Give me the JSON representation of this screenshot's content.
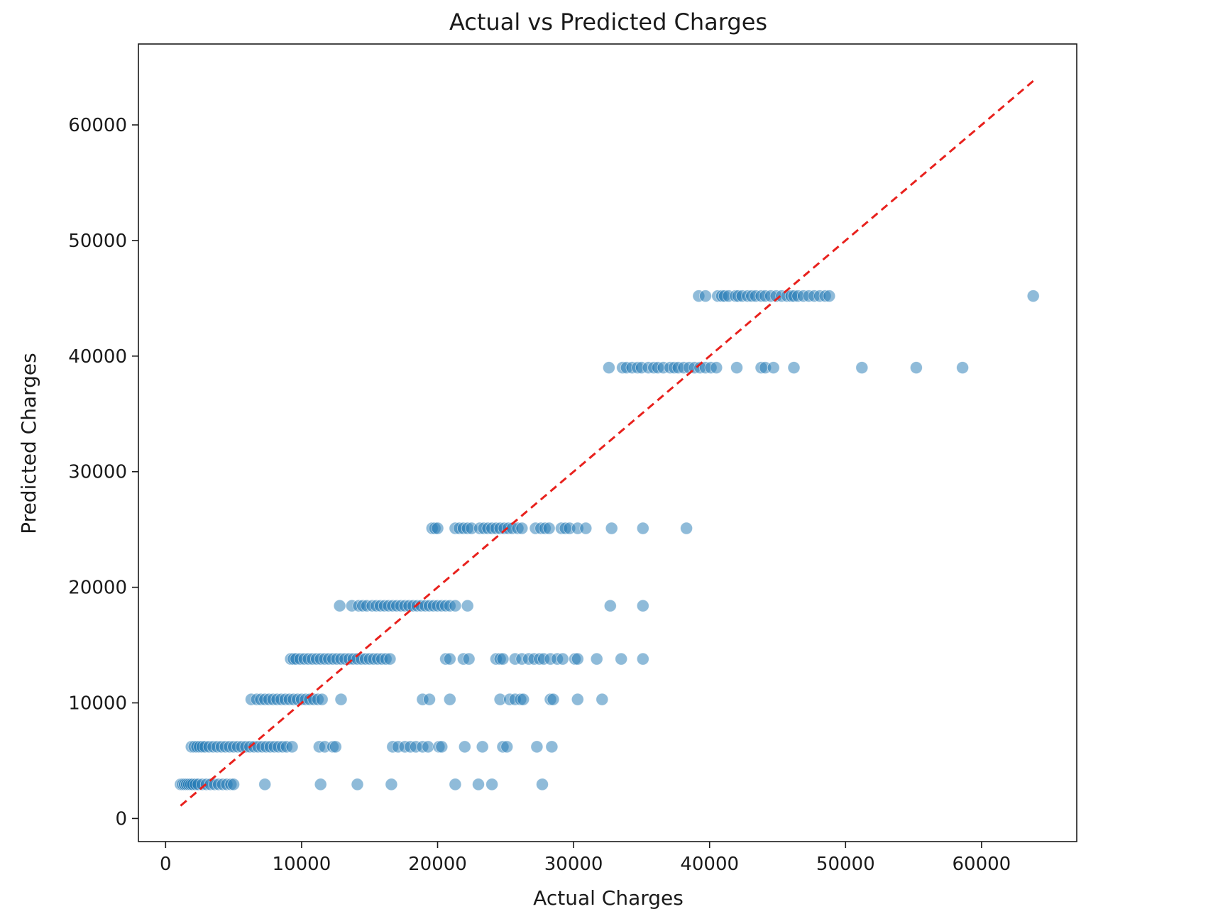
{
  "chart_data": {
    "type": "scatter",
    "title": "Actual vs Predicted Charges",
    "xlabel": "Actual Charges",
    "ylabel": "Predicted Charges",
    "xlim": [
      -2000,
      67000
    ],
    "ylim": [
      -2000,
      67000
    ],
    "xticks": [
      0,
      10000,
      20000,
      30000,
      40000,
      50000,
      60000
    ],
    "yticks": [
      0,
      10000,
      20000,
      30000,
      40000,
      50000,
      60000
    ],
    "xtick_labels": [
      "0",
      "10000",
      "20000",
      "30000",
      "40000",
      "50000",
      "60000"
    ],
    "ytick_labels": [
      "0",
      "10000",
      "20000",
      "30000",
      "40000",
      "50000",
      "60000"
    ],
    "grid": false,
    "colors": {
      "points": "#1f77b4",
      "reference_line": "#e8211d"
    },
    "reference_line": {
      "style": "dashed",
      "x": [
        1100,
        63800
      ],
      "y": [
        1100,
        63800
      ]
    },
    "series": [
      {
        "levels": [
          {
            "y": 2950,
            "x": [
              1100,
              1250,
              1400,
              1550,
              1700,
              1850,
              2000,
              2200,
              2400,
              2700,
              3000,
              3300,
              3600,
              3900,
              4200,
              4500,
              4800,
              5000,
              7300,
              11400,
              14100,
              16600,
              21300,
              23000,
              24000,
              27700
            ]
          },
          {
            "y": 6200,
            "x": [
              1900,
              2100,
              2300,
              2500,
              2700,
              2900,
              3200,
              3500,
              3800,
              4100,
              4400,
              4700,
              5000,
              5300,
              5600,
              5900,
              6200,
              6500,
              6800,
              7100,
              7400,
              7700,
              8000,
              8300,
              8600,
              8900,
              9300,
              11300,
              11700,
              12300,
              12500,
              16700,
              17100,
              17600,
              18000,
              18400,
              18900,
              19300,
              20100,
              20300,
              22000,
              23300,
              24800,
              25100,
              27300,
              28400
            ]
          },
          {
            "y": 10300,
            "x": [
              6300,
              6700,
              7000,
              7300,
              7600,
              7900,
              8200,
              8500,
              8800,
              9100,
              9400,
              9700,
              10000,
              10300,
              10600,
              10900,
              11200,
              11500,
              12900,
              18900,
              19400,
              20900,
              24600,
              25300,
              25700,
              26100,
              26300,
              28300,
              28500,
              30300,
              32100
            ]
          },
          {
            "y": 13800,
            "x": [
              9200,
              9400,
              9600,
              9900,
              10200,
              10500,
              10800,
              11100,
              11400,
              11700,
              12000,
              12300,
              12600,
              12900,
              13200,
              13500,
              13800,
              14100,
              14400,
              14700,
              15000,
              15300,
              15600,
              15900,
              16200,
              16500,
              20600,
              20900,
              21900,
              22300,
              24300,
              24600,
              24800,
              25700,
              26200,
              26700,
              27100,
              27500,
              27800,
              28300,
              28800,
              29200,
              30100,
              30300,
              31700,
              33500,
              35100
            ]
          },
          {
            "y": 18400,
            "x": [
              12800,
              13700,
              14200,
              14500,
              14800,
              15200,
              15500,
              15800,
              16100,
              16400,
              16700,
              17000,
              17300,
              17600,
              17900,
              18200,
              18500,
              18800,
              19100,
              19400,
              19700,
              20000,
              20300,
              20600,
              20900,
              21300,
              22200,
              32700,
              35100
            ]
          },
          {
            "y": 25100,
            "x": [
              19600,
              19800,
              20000,
              21300,
              21600,
              21900,
              22200,
              22500,
              23100,
              23400,
              23700,
              24000,
              24300,
              24600,
              24900,
              25200,
              25500,
              25900,
              26200,
              27200,
              27600,
              27900,
              28200,
              29100,
              29400,
              29700,
              30300,
              30900,
              32800,
              35100,
              38300
            ]
          },
          {
            "y": 39000,
            "x": [
              32600,
              33600,
              33900,
              34300,
              34700,
              35000,
              35500,
              35900,
              36200,
              36600,
              37100,
              37400,
              37700,
              38100,
              38500,
              38900,
              39300,
              39700,
              40100,
              40500,
              42000,
              43800,
              44100,
              44700,
              46200,
              51200,
              55200,
              58600
            ]
          },
          {
            "y": 45200,
            "x": [
              39200,
              39700,
              40600,
              40900,
              41100,
              41400,
              41900,
              42100,
              42400,
              42800,
              43100,
              43400,
              43800,
              44100,
              44500,
              44900,
              45300,
              45700,
              46000,
              46200,
              46500,
              46900,
              47300,
              47700,
              48100,
              48500,
              48800,
              63800
            ]
          }
        ]
      }
    ]
  }
}
